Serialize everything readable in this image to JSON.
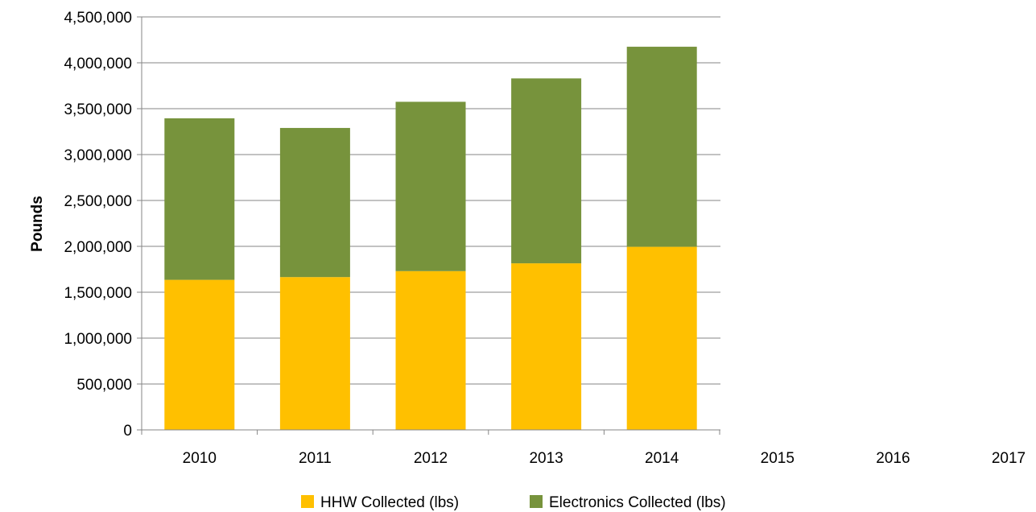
{
  "chart_data": {
    "type": "bar",
    "stacked": true,
    "categories": [
      "2010",
      "2011",
      "2012",
      "2013",
      "2014",
      "2015",
      "2016",
      "2017"
    ],
    "series": [
      {
        "name": "HHW Collected (lbs)",
        "color": "#ffc000",
        "values": [
          1635000,
          1665000,
          1730000,
          1815000,
          1995000,
          null,
          null,
          null
        ]
      },
      {
        "name": "Electronics Collected (lbs)",
        "color": "#77933c",
        "values": [
          1760000,
          1625000,
          1845000,
          2015000,
          2180000,
          null,
          null,
          null
        ]
      }
    ],
    "ylabel": "Pounds",
    "ylim": [
      0,
      4500000
    ],
    "yticks": [
      "0",
      "500,000",
      "1,000,000",
      "1,500,000",
      "2,000,000",
      "2,500,000",
      "3,000,000",
      "3,500,000",
      "4,000,000",
      "4,500,000"
    ],
    "grid": true,
    "legend": "bottom"
  }
}
